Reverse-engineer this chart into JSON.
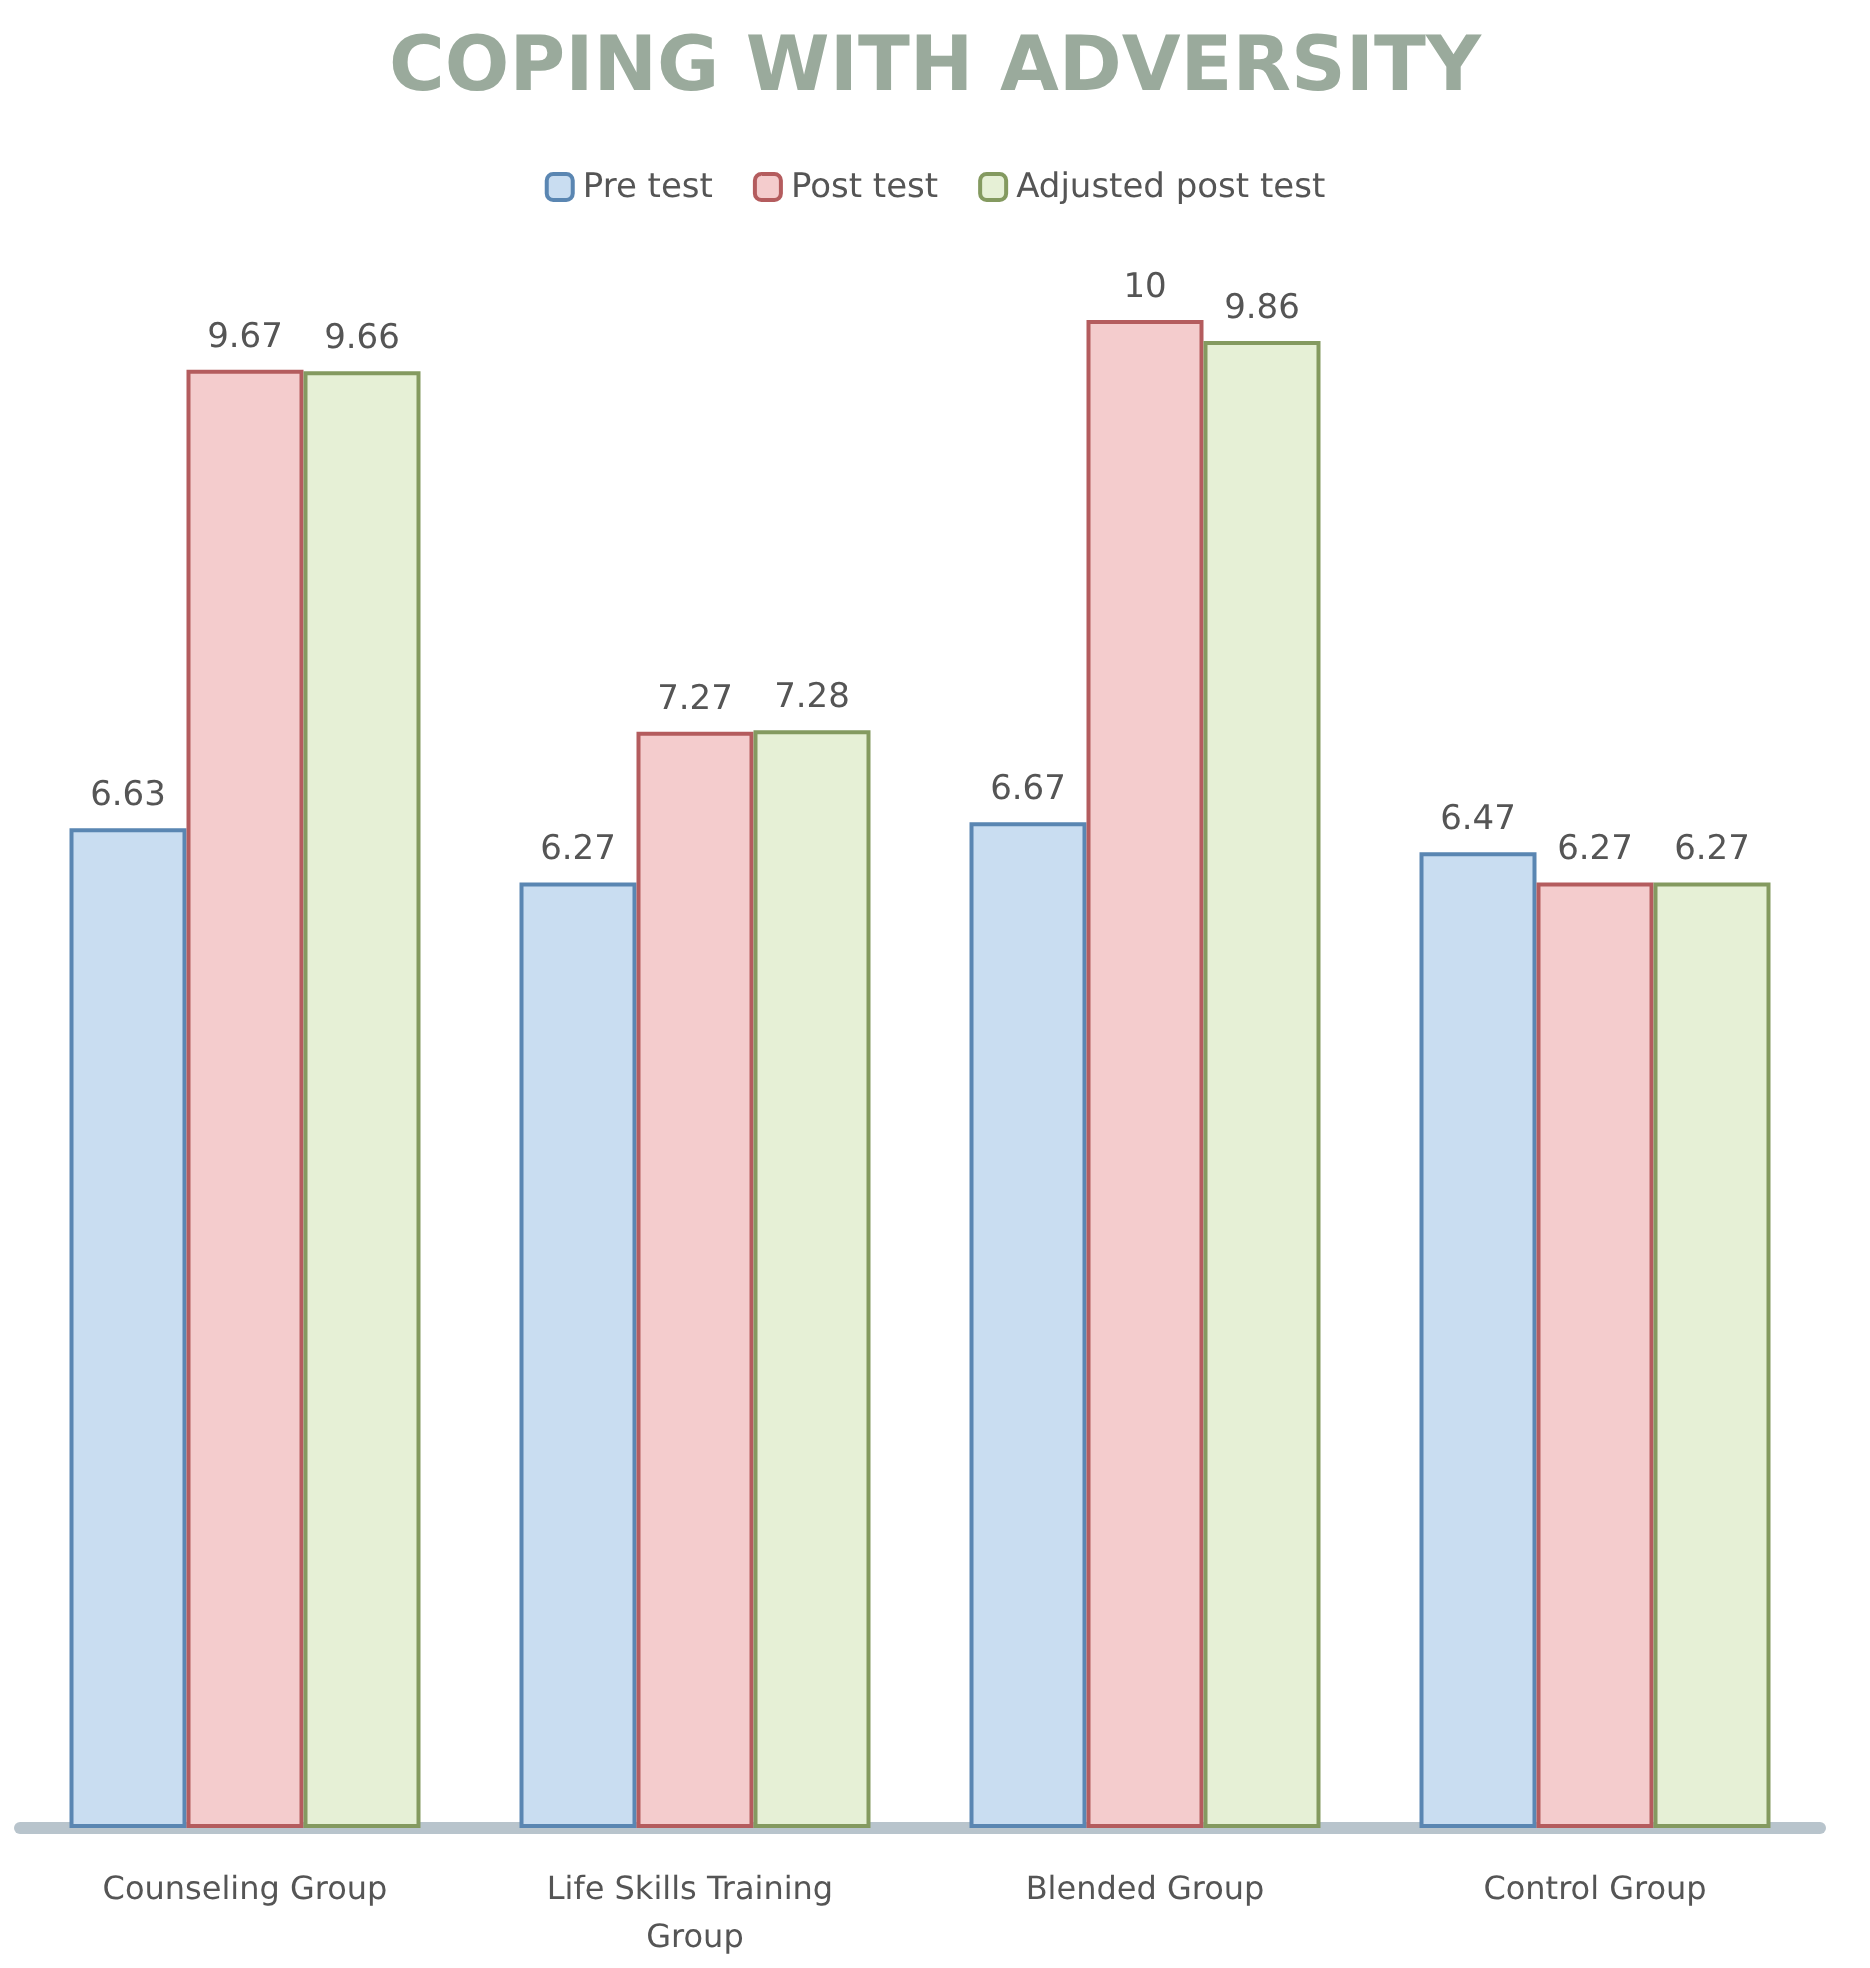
{
  "chart_data": {
    "type": "bar",
    "title": "COPING WITH ADVERSITY",
    "categories": [
      "Counseling Group",
      "Life Skills Training Group",
      "Blended Group",
      "Control Group"
    ],
    "series": [
      {
        "name": "Pre test",
        "color": "#c9ddf1",
        "values": [
          6.63,
          6.27,
          6.67,
          6.47
        ]
      },
      {
        "name": "Post test",
        "color": "#f4cccd",
        "values": [
          9.67,
          7.27,
          10,
          6.27
        ]
      },
      {
        "name": "Adjusted post test",
        "color": "#e6f0d6",
        "values": [
          9.66,
          7.28,
          9.86,
          6.27
        ]
      }
    ],
    "data_labels": true,
    "legend": "top"
  }
}
